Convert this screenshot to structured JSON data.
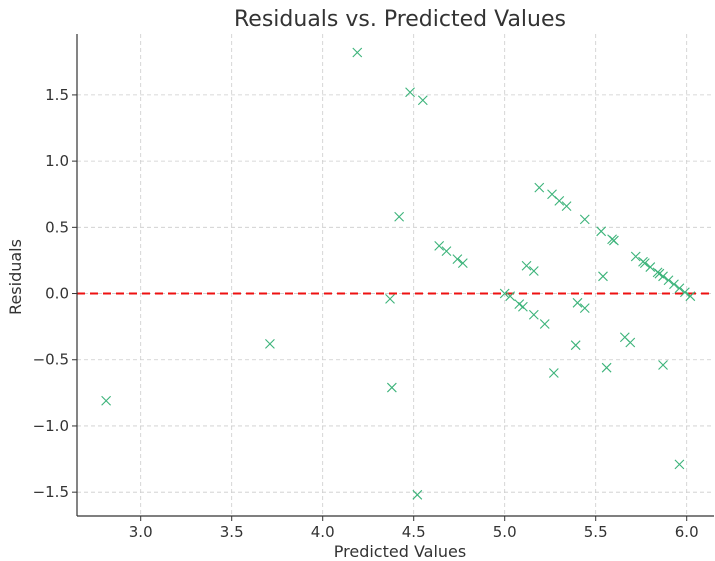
{
  "chart_data": {
    "type": "scatter",
    "title": "Residuals vs. Predicted Values",
    "xlabel": "Predicted Values",
    "ylabel": "Residuals",
    "xlim": [
      2.65,
      6.15
    ],
    "ylim": [
      -1.68,
      1.96
    ],
    "x_ticks": [
      3.0,
      3.5,
      4.0,
      4.5,
      5.0,
      5.5,
      6.0
    ],
    "x_tick_labels": [
      "3.0",
      "3.5",
      "4.0",
      "4.5",
      "5.0",
      "5.5",
      "6.0"
    ],
    "y_ticks": [
      -1.5,
      -1.0,
      -0.5,
      0.0,
      0.5,
      1.0,
      1.5
    ],
    "y_tick_labels": [
      "−1.5",
      "−1.0",
      "−0.5",
      "0.0",
      "0.5",
      "1.0",
      "1.5"
    ],
    "grid": true,
    "marker": "x",
    "marker_color": "#3cb37a",
    "reference_line": {
      "y": 0,
      "color": "#ee1111",
      "style": "dashed"
    },
    "points": [
      {
        "x": 2.81,
        "y": -0.81
      },
      {
        "x": 3.71,
        "y": -0.38
      },
      {
        "x": 4.19,
        "y": 1.82
      },
      {
        "x": 4.37,
        "y": -0.04
      },
      {
        "x": 4.38,
        "y": -0.71
      },
      {
        "x": 4.42,
        "y": 0.58
      },
      {
        "x": 4.48,
        "y": 1.52
      },
      {
        "x": 4.52,
        "y": -1.52
      },
      {
        "x": 4.55,
        "y": 1.46
      },
      {
        "x": 4.64,
        "y": 0.36
      },
      {
        "x": 4.68,
        "y": 0.32
      },
      {
        "x": 4.74,
        "y": 0.26
      },
      {
        "x": 4.77,
        "y": 0.23
      },
      {
        "x": 5.0,
        "y": 0.0
      },
      {
        "x": 5.03,
        "y": -0.02
      },
      {
        "x": 5.08,
        "y": -0.08
      },
      {
        "x": 5.1,
        "y": -0.1
      },
      {
        "x": 5.12,
        "y": 0.21
      },
      {
        "x": 5.16,
        "y": 0.17
      },
      {
        "x": 5.16,
        "y": -0.16
      },
      {
        "x": 5.19,
        "y": 0.8
      },
      {
        "x": 5.22,
        "y": -0.23
      },
      {
        "x": 5.26,
        "y": 0.75
      },
      {
        "x": 5.27,
        "y": -0.6
      },
      {
        "x": 5.3,
        "y": 0.7
      },
      {
        "x": 5.34,
        "y": 0.66
      },
      {
        "x": 5.39,
        "y": -0.39
      },
      {
        "x": 5.4,
        "y": -0.07
      },
      {
        "x": 5.44,
        "y": 0.56
      },
      {
        "x": 5.44,
        "y": -0.11
      },
      {
        "x": 5.53,
        "y": 0.47
      },
      {
        "x": 5.54,
        "y": 0.13
      },
      {
        "x": 5.56,
        "y": -0.56
      },
      {
        "x": 5.59,
        "y": 0.41
      },
      {
        "x": 5.6,
        "y": 0.4
      },
      {
        "x": 5.66,
        "y": -0.33
      },
      {
        "x": 5.69,
        "y": -0.37
      },
      {
        "x": 5.72,
        "y": 0.28
      },
      {
        "x": 5.76,
        "y": 0.24
      },
      {
        "x": 5.77,
        "y": 0.23
      },
      {
        "x": 5.8,
        "y": 0.2
      },
      {
        "x": 5.84,
        "y": 0.16
      },
      {
        "x": 5.85,
        "y": 0.15
      },
      {
        "x": 5.87,
        "y": 0.13
      },
      {
        "x": 5.87,
        "y": -0.54
      },
      {
        "x": 5.9,
        "y": 0.1
      },
      {
        "x": 5.93,
        "y": 0.07
      },
      {
        "x": 5.96,
        "y": 0.04
      },
      {
        "x": 5.96,
        "y": -1.29
      },
      {
        "x": 5.99,
        "y": 0.01
      },
      {
        "x": 6.02,
        "y": -0.02
      }
    ]
  }
}
